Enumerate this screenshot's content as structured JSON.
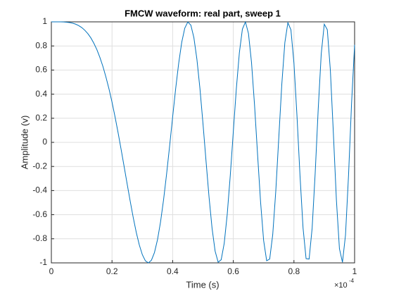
{
  "chart_data": {
    "type": "line",
    "title": "FMCW waveform: real part, sweep 1",
    "xlabel": "Time (s)",
    "ylabel": "Amplitude (v)",
    "x_multiplier": {
      "base": "×10",
      "exponent": "-4"
    },
    "x": [
      0,
      1e-06,
      2e-06,
      3e-06,
      4e-06,
      5e-06,
      6e-06,
      7e-06,
      8e-06,
      9e-06,
      1e-05,
      1.1e-05,
      1.2e-05,
      1.3e-05,
      1.4e-05,
      1.5e-05,
      1.6e-05,
      1.7e-05,
      1.8e-05,
      1.9e-05,
      2e-05,
      2.1e-05,
      2.2e-05,
      2.3e-05,
      2.4e-05,
      2.5e-05,
      2.6e-05,
      2.7e-05,
      2.8e-05,
      2.9e-05,
      3e-05,
      3.1e-05,
      3.2e-05,
      3.3e-05,
      3.4e-05,
      3.5e-05,
      3.6e-05,
      3.7e-05,
      3.8e-05,
      3.9e-05,
      4e-05,
      4.1e-05,
      4.2e-05,
      4.3e-05,
      4.4e-05,
      4.5e-05,
      4.6e-05,
      4.7e-05,
      4.8e-05,
      4.9e-05,
      5e-05,
      5.1e-05,
      5.2e-05,
      5.3e-05,
      5.4e-05,
      5.5e-05,
      5.6e-05,
      5.7e-05,
      5.8e-05,
      5.9e-05,
      6e-05,
      6.1e-05,
      6.2e-05,
      6.3e-05,
      6.4e-05,
      6.5e-05,
      6.6e-05,
      6.7e-05,
      6.8e-05,
      6.9e-05,
      7e-05,
      7.1e-05,
      7.2e-05,
      7.3e-05,
      7.4e-05,
      7.5e-05,
      7.6e-05,
      7.7e-05,
      7.8e-05,
      7.9e-05,
      8e-05,
      8.1e-05,
      8.2e-05,
      8.3e-05,
      8.4e-05,
      8.5e-05,
      8.6e-05,
      8.7e-05,
      8.8e-05,
      8.9e-05,
      9e-05,
      9.1e-05,
      9.2e-05,
      9.3e-05,
      9.4e-05,
      9.5e-05,
      9.6e-05,
      9.7e-05,
      9.8e-05,
      9.9e-05,
      0.0001
    ],
    "values": [
      1,
      1,
      1,
      1,
      0.999,
      0.997,
      0.994,
      0.989,
      0.981,
      0.969,
      0.953,
      0.931,
      0.903,
      0.868,
      0.823,
      0.77,
      0.705,
      0.63,
      0.542,
      0.444,
      0.334,
      0.212,
      0.081,
      -0.058,
      -0.201,
      -0.346,
      -0.488,
      -0.624,
      -0.747,
      -0.851,
      -0.932,
      -0.983,
      -1,
      -0.978,
      -0.914,
      -0.808,
      -0.661,
      -0.477,
      -0.263,
      -0.03,
      0.212,
      0.447,
      0.658,
      0.831,
      0.948,
      0.999,
      0.973,
      0.869,
      0.689,
      0.446,
      0.156,
      -0.153,
      -0.454,
      -0.714,
      -0.902,
      -0.994,
      -0.974,
      -0.838,
      -0.596,
      -0.275,
      0.088,
      0.445,
      0.744,
      0.94,
      0.999,
      0.904,
      0.664,
      0.311,
      -0.099,
      -0.497,
      -0.814,
      -0.982,
      -0.968,
      -0.766,
      -0.408,
      0.039,
      0.484,
      0.828,
      0.993,
      0.934,
      0.657,
      0.219,
      -0.277,
      -0.71,
      -0.965,
      -0.968,
      -0.711,
      -0.256,
      0.276,
      0.735,
      0.981,
      0.935,
      0.601,
      0.075,
      -0.479,
      -0.883,
      -0.995,
      -0.769,
      -0.273,
      0.324,
      0.809
    ],
    "color": "#0072bd",
    "xlim": [
      0,
      0.0001
    ],
    "xticks": [
      0,
      {
        "value": 2e-05,
        "label": "0.2"
      },
      {
        "value": 4e-05,
        "label": "0.4"
      },
      {
        "value": 6e-05,
        "label": "0.6"
      },
      {
        "value": 8e-05,
        "label": "0.8"
      },
      {
        "value": 0.0001,
        "label": "1"
      }
    ],
    "ylim": [
      -1,
      1
    ],
    "yticks": [
      -1,
      -0.8,
      -0.6,
      -0.4,
      -0.2,
      0,
      0.2,
      0.4,
      0.6,
      0.8,
      1
    ],
    "grid": true
  }
}
